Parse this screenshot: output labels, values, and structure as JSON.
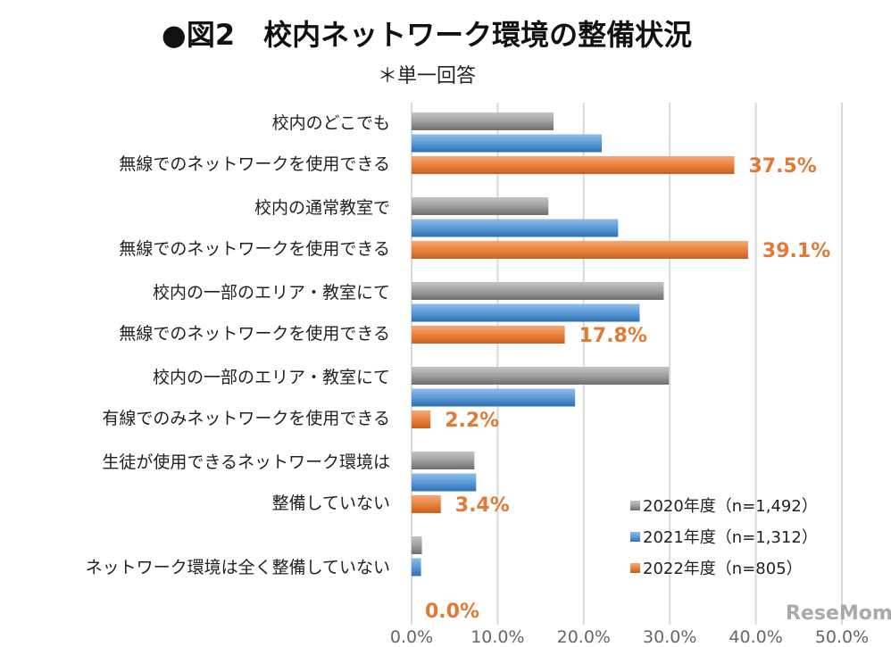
{
  "chart_data": {
    "type": "bar",
    "orientation": "horizontal",
    "title": "●図2　校内ネットワーク環境の整備状況",
    "subtitle": "＊単一回答",
    "categories": [
      [
        "校内のどこでも",
        "無線でのネットワークを使用できる"
      ],
      [
        "校内の通常教室で",
        "無線でのネットワークを使用できる"
      ],
      [
        "校内の一部のエリア・教室にて",
        "無線でのネットワークを使用できる"
      ],
      [
        "校内の一部のエリア・教室にて",
        "有線でのみネットワークを使用できる"
      ],
      [
        "生徒が使用できるネットワーク環境は",
        "整備していない"
      ],
      [
        "ネットワーク環境は全く整備していない"
      ]
    ],
    "series": [
      {
        "name": "2020年度（n=1,492）",
        "color": "#8c8c8c",
        "values": [
          16.5,
          15.9,
          29.3,
          29.9,
          7.3,
          1.2
        ]
      },
      {
        "name": "2021年度（n=1,312）",
        "color": "#4a8fd4",
        "values": [
          22.1,
          24.0,
          26.5,
          19.0,
          7.5,
          1.1
        ]
      },
      {
        "name": "2022年度（n=805）",
        "color": "#e8793a",
        "values": [
          37.5,
          39.1,
          17.8,
          2.2,
          3.4,
          0.0
        ]
      }
    ],
    "data_labels": [
      "37.5%",
      "39.1%",
      "17.8%",
      "2.2%",
      "3.4%",
      "0.0%"
    ],
    "xlim": [
      0,
      50
    ],
    "xticks": [
      "0.0%",
      "10.0%",
      "20.0%",
      "30.0%",
      "40.0%",
      "50.0%"
    ],
    "grid": true,
    "legend_position": "bottom-right",
    "watermark": "ReseMom"
  }
}
